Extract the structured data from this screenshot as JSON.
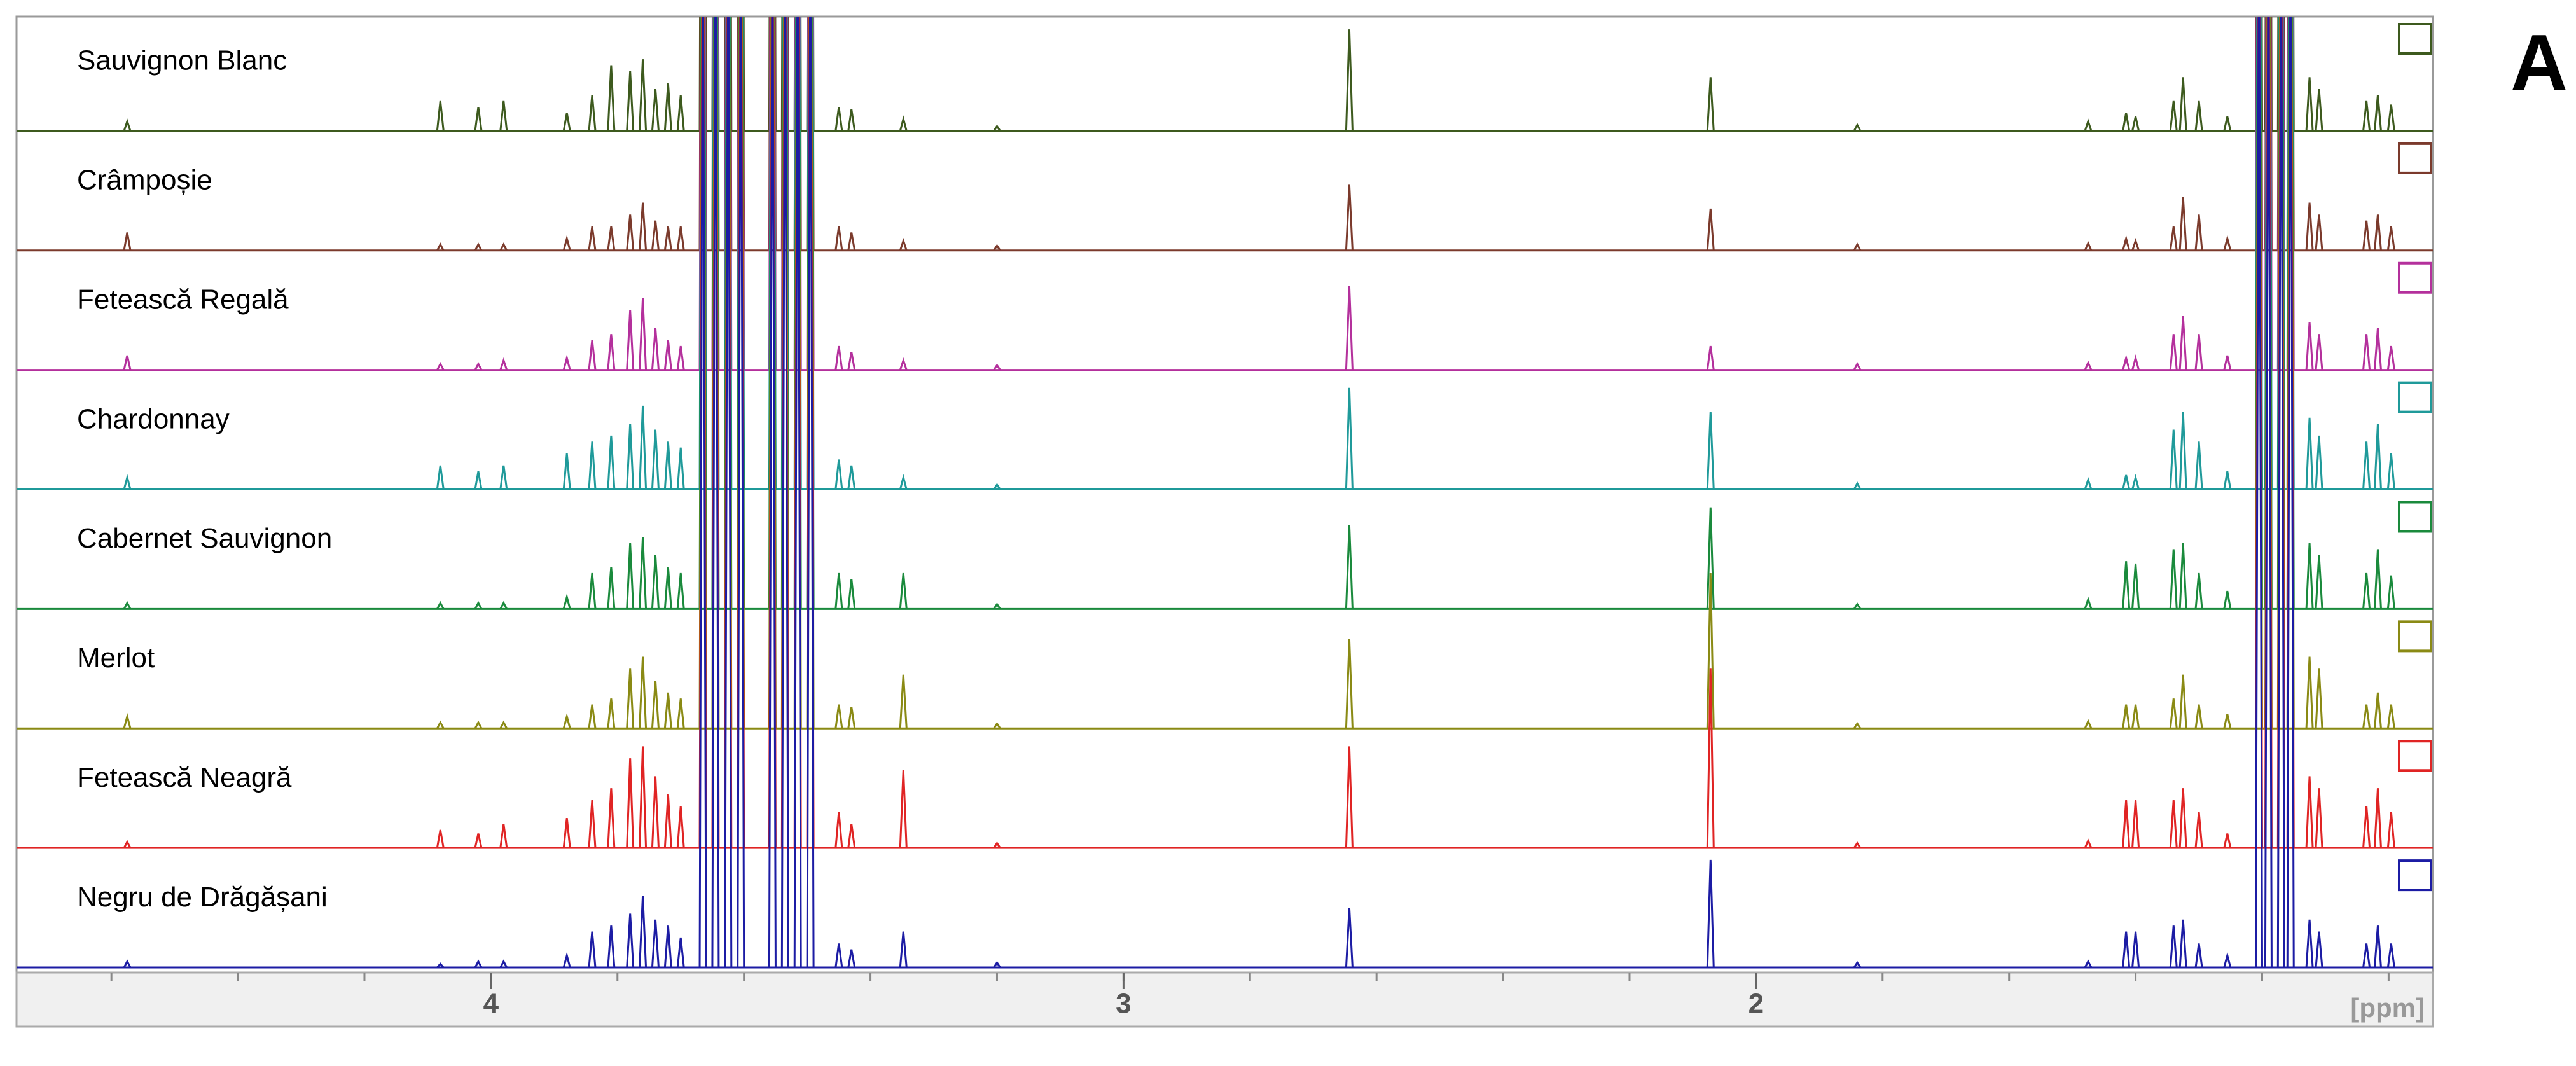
{
  "chart_data": {
    "type": "stacked-spectrum",
    "panel_label": "A",
    "x_label": "[ppm]",
    "xlim": [
      4.75,
      0.93
    ],
    "xticks": [
      4,
      3,
      2
    ],
    "xminor_ticks": [
      4.6,
      4.4,
      4.2,
      4.0,
      3.8,
      3.6,
      3.4,
      3.2,
      3.0,
      2.8,
      2.6,
      2.4,
      2.2,
      2.0,
      1.8,
      1.6,
      1.4,
      1.2,
      1.0
    ],
    "x": [
      4.575,
      4.08,
      4.02,
      3.98,
      3.88,
      3.84,
      3.81,
      3.78,
      3.76,
      3.74,
      3.72,
      3.7,
      3.665,
      3.645,
      3.625,
      3.605,
      3.555,
      3.535,
      3.515,
      3.495,
      3.45,
      3.43,
      3.348,
      3.2,
      2.643,
      2.072,
      1.84,
      1.475,
      1.415,
      1.4,
      1.34,
      1.325,
      1.3,
      1.255,
      1.205,
      1.19,
      1.17,
      1.155,
      1.125,
      1.11,
      1.035,
      1.017,
      0.996
    ],
    "series": [
      {
        "name": "Sauvignon Blanc",
        "color": "#3d5a1e",
        "values": [
          0.08,
          0.25,
          0.2,
          0.25,
          0.15,
          0.3,
          0.55,
          0.5,
          0.6,
          0.35,
          0.4,
          0.3,
          9,
          9,
          9,
          9,
          9,
          9,
          9,
          9,
          0.2,
          0.18,
          0.1,
          0.04,
          0.85,
          0.45,
          0.05,
          0.08,
          0.15,
          0.12,
          0.25,
          0.45,
          0.25,
          0.12,
          9,
          9,
          9,
          9,
          0.45,
          0.35,
          0.25,
          0.3,
          0.22
        ]
      },
      {
        "name": "Crâmpoșie",
        "color": "#7b3a2c",
        "values": [
          0.15,
          0.05,
          0.05,
          0.05,
          0.1,
          0.2,
          0.2,
          0.3,
          0.4,
          0.25,
          0.2,
          0.2,
          9,
          9,
          9,
          9,
          9,
          9,
          9,
          9,
          0.2,
          0.15,
          0.08,
          0.04,
          0.55,
          0.35,
          0.05,
          0.06,
          0.1,
          0.08,
          0.2,
          0.45,
          0.3,
          0.1,
          9,
          9,
          9,
          9,
          0.4,
          0.3,
          0.25,
          0.3,
          0.2
        ]
      },
      {
        "name": "Fetească Regală",
        "color": "#b4309c",
        "values": [
          0.12,
          0.05,
          0.05,
          0.08,
          0.1,
          0.25,
          0.3,
          0.5,
          0.6,
          0.35,
          0.25,
          0.2,
          9,
          9,
          9,
          9,
          9,
          9,
          9,
          9,
          0.2,
          0.15,
          0.08,
          0.04,
          0.7,
          0.2,
          0.05,
          0.06,
          0.1,
          0.1,
          0.3,
          0.45,
          0.3,
          0.12,
          9,
          9,
          9,
          9,
          0.4,
          0.3,
          0.3,
          0.35,
          0.2
        ]
      },
      {
        "name": "Chardonnay",
        "color": "#1f9a9a",
        "values": [
          0.1,
          0.2,
          0.15,
          0.2,
          0.3,
          0.4,
          0.45,
          0.55,
          0.7,
          0.5,
          0.4,
          0.35,
          9,
          9,
          9,
          9,
          9,
          9,
          9,
          9,
          0.25,
          0.2,
          0.1,
          0.04,
          0.85,
          0.65,
          0.05,
          0.08,
          0.12,
          0.1,
          0.5,
          0.65,
          0.4,
          0.15,
          9,
          9,
          9,
          9,
          0.6,
          0.45,
          0.4,
          0.55,
          0.3
        ]
      },
      {
        "name": "Cabernet Sauvignon",
        "color": "#1a8a3c",
        "values": [
          0.05,
          0.05,
          0.05,
          0.05,
          0.1,
          0.3,
          0.35,
          0.55,
          0.6,
          0.45,
          0.35,
          0.3,
          9,
          9,
          9,
          9,
          9,
          9,
          9,
          9,
          0.3,
          0.25,
          0.3,
          0.04,
          0.7,
          0.85,
          0.04,
          0.08,
          0.4,
          0.38,
          0.5,
          0.55,
          0.3,
          0.15,
          9,
          9,
          9,
          9,
          0.55,
          0.45,
          0.3,
          0.5,
          0.28
        ]
      },
      {
        "name": "Merlot",
        "color": "#8a8a14",
        "values": [
          0.1,
          0.05,
          0.05,
          0.05,
          0.1,
          0.2,
          0.25,
          0.5,
          0.6,
          0.4,
          0.3,
          0.25,
          9,
          9,
          9,
          9,
          9,
          9,
          9,
          9,
          0.2,
          0.18,
          0.45,
          0.04,
          0.75,
          1.3,
          0.04,
          0.06,
          0.2,
          0.2,
          0.25,
          0.45,
          0.2,
          0.12,
          9,
          9,
          9,
          9,
          0.6,
          0.5,
          0.2,
          0.3,
          0.2
        ]
      },
      {
        "name": "Fetească Neagră",
        "color": "#e02424",
        "values": [
          0.05,
          0.15,
          0.12,
          0.2,
          0.25,
          0.4,
          0.5,
          0.75,
          0.85,
          0.6,
          0.45,
          0.35,
          9,
          9,
          9,
          9,
          9,
          9,
          9,
          9,
          0.3,
          0.2,
          0.65,
          0.04,
          0.85,
          1.5,
          0.04,
          0.06,
          0.4,
          0.4,
          0.4,
          0.5,
          0.3,
          0.12,
          9,
          9,
          9,
          9,
          0.6,
          0.5,
          0.35,
          0.5,
          0.3
        ]
      },
      {
        "name": "Negru de Drăgășani",
        "color": "#1c1ca4",
        "values": [
          0.05,
          0.03,
          0.05,
          0.05,
          0.1,
          0.3,
          0.35,
          0.45,
          0.6,
          0.4,
          0.35,
          0.25,
          9,
          9,
          9,
          9,
          9,
          9,
          9,
          9,
          0.2,
          0.15,
          0.3,
          0.04,
          0.5,
          0.9,
          0.04,
          0.05,
          0.3,
          0.3,
          0.35,
          0.4,
          0.2,
          0.1,
          9,
          9,
          9,
          9,
          0.4,
          0.3,
          0.2,
          0.35,
          0.2
        ]
      }
    ]
  }
}
